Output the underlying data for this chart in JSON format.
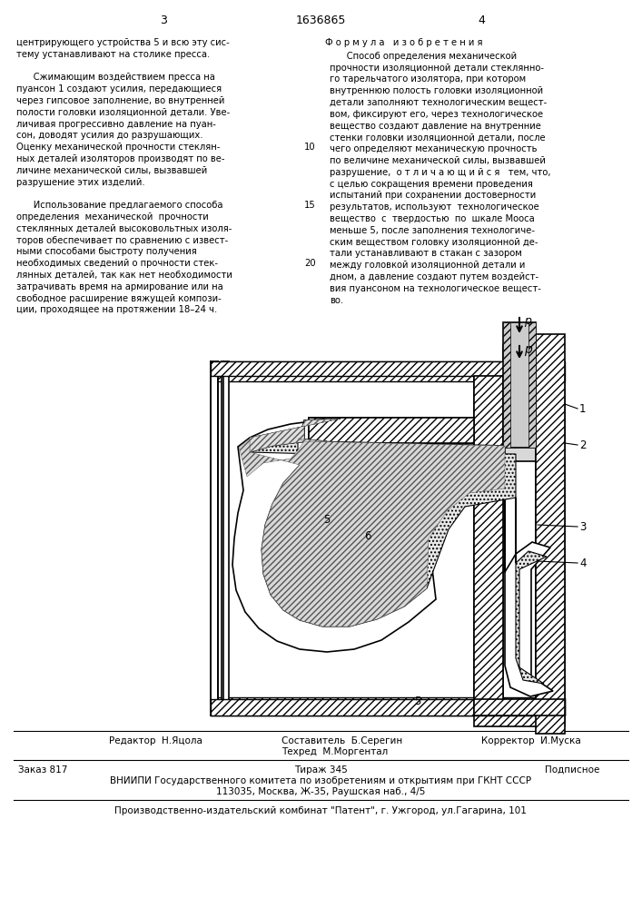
{
  "left_column_text": [
    "центрирующего устройства 5 и всю эту сис-",
    "тему устанавливают на столике пресса.",
    "",
    "      Сжимающим воздействием пресса на",
    "пуансон 1 создают усилия, передающиеся",
    "через гипсовое заполнение, во внутренней",
    "полости головки изоляционной детали. Уве-",
    "личивая прогрессивно давление на пуан-",
    "сон, доводят усилия до разрушающих.",
    "Оценку механической прочности стеклян-",
    "ных деталей изоляторов производят по ве-",
    "личине механической силы, вызвавшей",
    "разрушение этих изделий.",
    "",
    "      Использование предлагаемого способа",
    "определения  механической  прочности",
    "стеклянных деталей высоковольтных изоля-",
    "торов обеспечивает по сравнению с извест-",
    "ными способами быстроту получения",
    "необходимых сведений о прочности стек-",
    "лянных деталей, так как нет необходимости",
    "затрачивать время на армирование или на",
    "свободное расширение вяжущей компози-",
    "ции, проходящее на протяжении 18–24 ч."
  ],
  "right_column_header": "Ф о р м у л а   и з о б р е т е н и я",
  "right_column_text": [
    "      Способ определения механической",
    "прочности изоляционной детали стеклянно-",
    "го тарельчатого изолятора, при котором",
    "внутреннюю полость головки изоляционной",
    "детали заполняют технологическим вещест-",
    "вом, фиксируют его, через технологическое",
    "вещество создают давление на внутренние",
    "стенки головки изоляционной детали, после",
    "чего определяют механическую прочность",
    "по величине механической силы, вызвавшей",
    "разрушение,  о т л и ч а ю щ и й с я   тем, что,",
    "с целью сокращения времени проведения",
    "испытаний при сохранении достоверности",
    "результатов, используют  технологическое",
    "вещество  с  твердостью  по  шкале Мооса",
    "меньше 5, после заполнения технологиче-",
    "ским веществом головку изоляционной де-",
    "тали устанавливают в стакан с зазором",
    "между головкой изоляционной детали и",
    "дном, а давление создают путем воздейст-",
    "вия пуансоном на технологическое вещест-",
    "во."
  ],
  "составитель_label": "Составитель",
  "составитель_name": "Б.Серегин",
  "редактор_label": "Редактор",
  "редактор_name": "Н.Яцола",
  "техред_label": "Техред",
  "техред_name": "М.Моргентал",
  "корректор_label": "Корректор",
  "корректор_name": "И.Муска",
  "заказ": "Заказ 817",
  "тираж": "Тираж 345",
  "подписное": "Подписное",
  "вниипи_line1": "ВНИИПИ Государственного комитета по изобретениям и открытиям при ГКНТ СССР",
  "вниипи_line2": "113035, Москва, Ж-35, Раушская наб., 4/5",
  "издат": "Производственно-издательский комбинат \"Патент\", г. Ужгород, ул.Гагарина, 101",
  "bg_color": "#ffffff",
  "text_color": "#000000"
}
